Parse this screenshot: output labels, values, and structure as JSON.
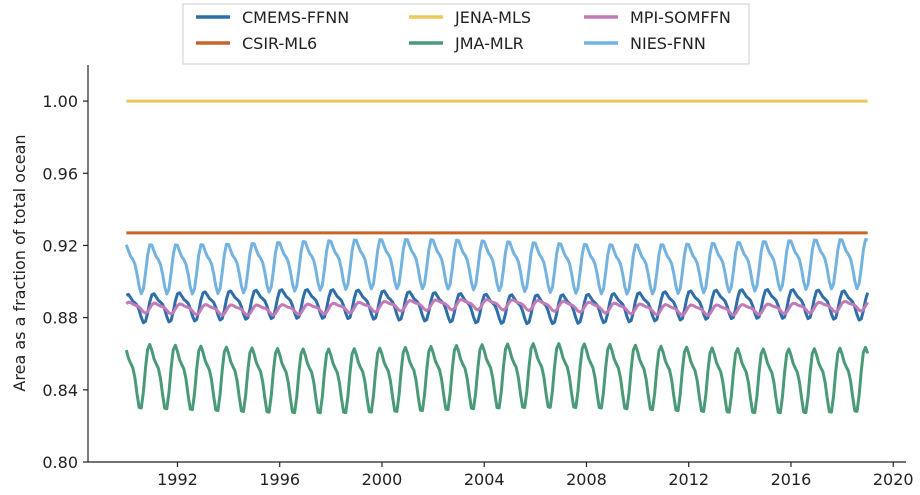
{
  "chart_data": {
    "type": "line",
    "title": "",
    "xlabel": "",
    "ylabel": "Area as a fraction of total ocean",
    "xlim": [
      1988.5,
      2020.5
    ],
    "ylim": [
      0.8,
      1.02
    ],
    "x_ticks": [
      1992,
      1996,
      2000,
      2004,
      2008,
      2012,
      2016,
      2020
    ],
    "y_ticks": [
      0.8,
      0.84,
      0.88,
      0.92,
      0.96,
      1.0
    ],
    "y_tick_labels": [
      "0.80",
      "0.84",
      "0.88",
      "0.92",
      "0.96",
      "1.00"
    ],
    "grid": false,
    "legend_position": "top-center",
    "x_start": 1990.0,
    "x_end": 2019.0,
    "series": [
      {
        "name": "CMEMS-FFNN",
        "color": "#2f6fa8",
        "kind": "seasonal",
        "mean": 0.887,
        "amplitude": 0.0085,
        "phase": 0.1
      },
      {
        "name": "CSIR-ML6",
        "color": "#c9632a",
        "kind": "constant",
        "mean": 0.927,
        "amplitude": 0.0,
        "phase": 0.0
      },
      {
        "name": "JENA-MLS",
        "color": "#ecc85b",
        "kind": "constant",
        "mean": 1.0,
        "amplitude": 0.0,
        "phase": 0.0
      },
      {
        "name": "JMA-MLR",
        "color": "#4a9a78",
        "kind": "seasonal",
        "mean": 0.848,
        "amplitude": 0.019,
        "phase": 0.25
      },
      {
        "name": "MPI-SOMFFN",
        "color": "#c27bb8",
        "kind": "seasonal",
        "mean": 0.886,
        "amplitude": 0.003,
        "phase": 0.05
      },
      {
        "name": "NIES-FNN",
        "color": "#74b3e0",
        "kind": "seasonal",
        "mean": 0.91,
        "amplitude": 0.0145,
        "phase": 0.2
      }
    ]
  }
}
